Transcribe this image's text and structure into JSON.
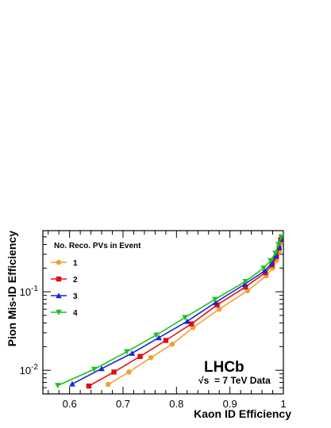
{
  "chart_data": {
    "type": "line",
    "xlabel": "Kaon ID Efficiency",
    "ylabel": "Pion Mis-ID Efficiency",
    "xlim": [
      0.55,
      1.0
    ],
    "ylim": [
      0.005,
      0.6
    ],
    "yscale": "log",
    "x_ticks": [
      {
        "value": 0.6,
        "label": "0.6"
      },
      {
        "value": 0.7,
        "label": "0.7"
      },
      {
        "value": 0.8,
        "label": "0.8"
      },
      {
        "value": 0.9,
        "label": "0.9"
      },
      {
        "value": 1.0,
        "label": "1"
      }
    ],
    "y_ticks": [
      {
        "value": 0.01,
        "label": "10",
        "exp": "-2"
      },
      {
        "value": 0.1,
        "label": "10",
        "exp": "-1"
      }
    ],
    "legend": {
      "title": "No. Reco. PVs in Event",
      "placement": "top-left"
    },
    "annotation": {
      "experiment": "LHCb",
      "energy_prefix": "√s",
      "energy_text": "= 7 TeV Data"
    },
    "series": [
      {
        "name": "1",
        "color": "#f0a030",
        "marker": "circle",
        "points": [
          [
            0.672,
            0.0066
          ],
          [
            0.711,
            0.0095
          ],
          [
            0.752,
            0.0145
          ],
          [
            0.792,
            0.0215
          ],
          [
            0.831,
            0.035
          ],
          [
            0.88,
            0.06
          ],
          [
            0.933,
            0.103
          ],
          [
            0.968,
            0.16
          ],
          [
            0.98,
            0.2
          ],
          [
            0.987,
            0.25
          ],
          [
            0.992,
            0.32
          ],
          [
            0.995,
            0.42
          ]
        ]
      },
      {
        "name": "2",
        "color": "#e01010",
        "marker": "square",
        "points": [
          [
            0.636,
            0.0063
          ],
          [
            0.683,
            0.0095
          ],
          [
            0.732,
            0.015
          ],
          [
            0.78,
            0.024
          ],
          [
            0.828,
            0.039
          ],
          [
            0.876,
            0.068
          ],
          [
            0.929,
            0.115
          ],
          [
            0.966,
            0.175
          ],
          [
            0.979,
            0.22
          ],
          [
            0.987,
            0.28
          ],
          [
            0.992,
            0.36
          ],
          [
            0.995,
            0.46
          ]
        ]
      },
      {
        "name": "3",
        "color": "#1428d0",
        "marker": "triangle-up",
        "points": [
          [
            0.605,
            0.0067
          ],
          [
            0.66,
            0.0105
          ],
          [
            0.717,
            0.0165
          ],
          [
            0.767,
            0.026
          ],
          [
            0.82,
            0.042
          ],
          [
            0.873,
            0.073
          ],
          [
            0.928,
            0.125
          ],
          [
            0.965,
            0.185
          ],
          [
            0.978,
            0.23
          ],
          [
            0.986,
            0.29
          ],
          [
            0.992,
            0.37
          ],
          [
            0.996,
            0.47
          ]
        ]
      },
      {
        "name": "4",
        "color": "#20c020",
        "marker": "triangle-down",
        "points": [
          [
            0.578,
            0.0064
          ],
          [
            0.646,
            0.0103
          ],
          [
            0.707,
            0.0172
          ],
          [
            0.762,
            0.028
          ],
          [
            0.816,
            0.047
          ],
          [
            0.872,
            0.08
          ],
          [
            0.929,
            0.135
          ],
          [
            0.963,
            0.2
          ],
          [
            0.976,
            0.25
          ],
          [
            0.985,
            0.31
          ],
          [
            0.991,
            0.4
          ],
          [
            0.996,
            0.5
          ]
        ]
      }
    ]
  }
}
